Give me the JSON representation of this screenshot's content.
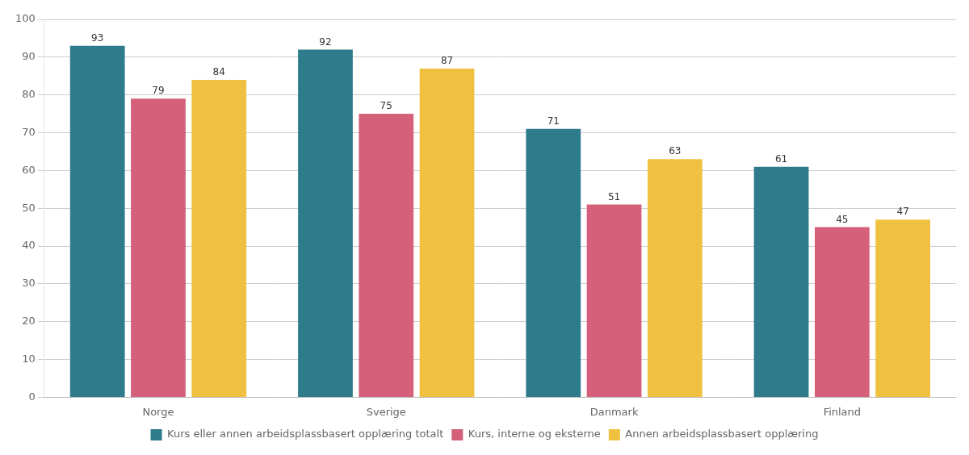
{
  "chart_data": {
    "type": "bar",
    "categories": [
      "Norge",
      "Sverige",
      "Danmark",
      "Finland"
    ],
    "series": [
      {
        "name": "Kurs eller annen arbeidsplassbasert opplæring totalt",
        "color": "#2e7b8c",
        "values": [
          93,
          92,
          71,
          61
        ]
      },
      {
        "name": "Kurs, interne og eksterne",
        "color": "#d4607a",
        "values": [
          79,
          75,
          51,
          45
        ]
      },
      {
        "name": "Annen arbeidsplassbasert opplæring",
        "color": "#f0c040",
        "values": [
          84,
          87,
          63,
          47
        ]
      }
    ],
    "ylim": [
      0,
      100
    ],
    "yticks": [
      0,
      10,
      20,
      30,
      40,
      50,
      60,
      70,
      80,
      90,
      100
    ],
    "grid": "y",
    "legend": "bottom",
    "data_labels": true
  }
}
